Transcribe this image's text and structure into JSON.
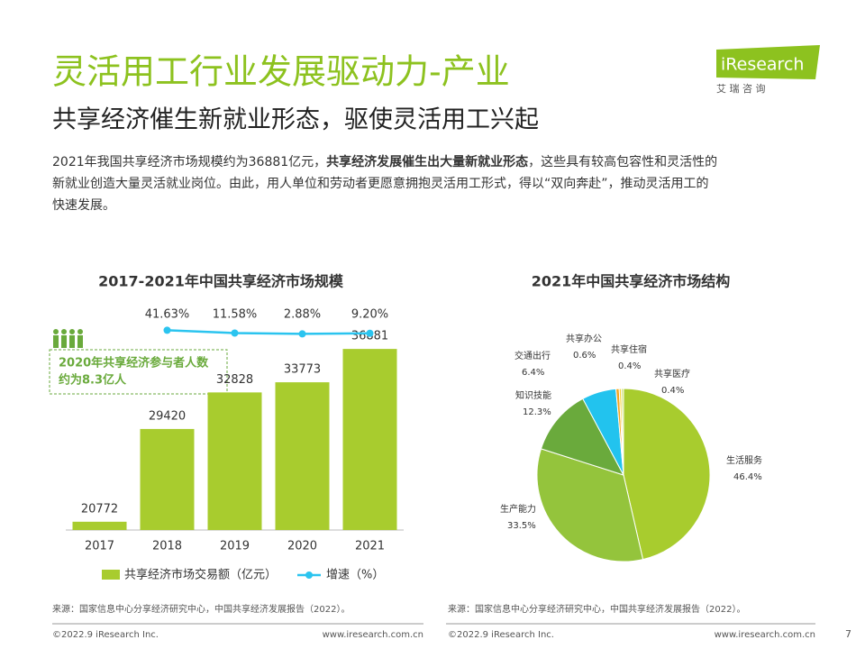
{
  "header": {
    "title": "灵活用工行业发展驱动力-产业",
    "subtitle": "共享经济催生新就业形态，驱使灵活用工兴起",
    "logo": "iResearch",
    "logo_cn": "艾 瑞 咨 询"
  },
  "paragraph": [
    [
      {
        "text": "2021年我国共享经济市场规模约为36881亿元，",
        "bold": false
      },
      {
        "text": "共享经济发展催生出大量新就业形态",
        "bold": true
      },
      {
        "text": "，这些具有较高包容性和灵活性的",
        "bold": false
      }
    ],
    [
      {
        "text": "新就业创造大量灵活就业岗位。由此，用人单位和劳动者更愿意拥抱灵活用工形式，得以“双向奔赴”，推动灵活用工的",
        "bold": false
      }
    ],
    [
      {
        "text": "快速发展。",
        "bold": false
      }
    ]
  ],
  "chart_data": [
    {
      "type": "bar",
      "title": "2017-2021年中国共享经济市场规模",
      "categories": [
        "2017",
        "2018",
        "2019",
        "2020",
        "2021"
      ],
      "ylim": [
        20000,
        40000
      ],
      "y2lim": [
        -2100,
        200
      ],
      "series": [
        {
          "name": "共享经济市场交易额（亿元）",
          "type": "bar",
          "color": "#a8cc2e",
          "values": [
            20772,
            29420,
            32828,
            33773,
            36881
          ]
        },
        {
          "name": "增速（%）",
          "type": "line",
          "axis": "y2",
          "color": "#2bc4ef",
          "values": [
            null,
            41.63,
            11.58,
            2.88,
            9.2
          ],
          "value_labels": [
            null,
            "41.63%",
            "11.58%",
            "2.88%",
            "9.20%"
          ]
        }
      ],
      "annotation": [
        "2020年共享经济参与者人数",
        "约为8.3亿人"
      ]
    },
    {
      "type": "pie",
      "title": "2021年中国共享经济市场结构",
      "categories": [
        "生活服务",
        "生产能力",
        "知识技能",
        "交通出行",
        "共享办公",
        "共享住宿",
        "共享医疗"
      ],
      "values": [
        46.4,
        33.5,
        12.3,
        6.4,
        0.6,
        0.4,
        0.4
      ],
      "value_labels": [
        "46.4%",
        "33.5%",
        "12.3%",
        "6.4%",
        "0.6%",
        "0.4%",
        "0.4%"
      ],
      "colors": [
        "#a8cc2e",
        "#94c43c",
        "#6aaa3c",
        "#22c3ee",
        "#f4a41c",
        "#f6d13a",
        "#cfe27a"
      ]
    }
  ],
  "footer": {
    "source_left": "来源：国家信息中心分享经济研究中心，中国共享经济发展报告（2022）。",
    "source_right": "来源：国家信息中心分享经济研究中心，中国共享经济发展报告（2022）。",
    "copyright_left": "©2022.9 iResearch Inc.",
    "url_left": "www.iresearch.com.cn",
    "copyright_right": "©2022.9 iResearch Inc.",
    "url_right": "www.iresearch.com.cn",
    "page": "7"
  }
}
